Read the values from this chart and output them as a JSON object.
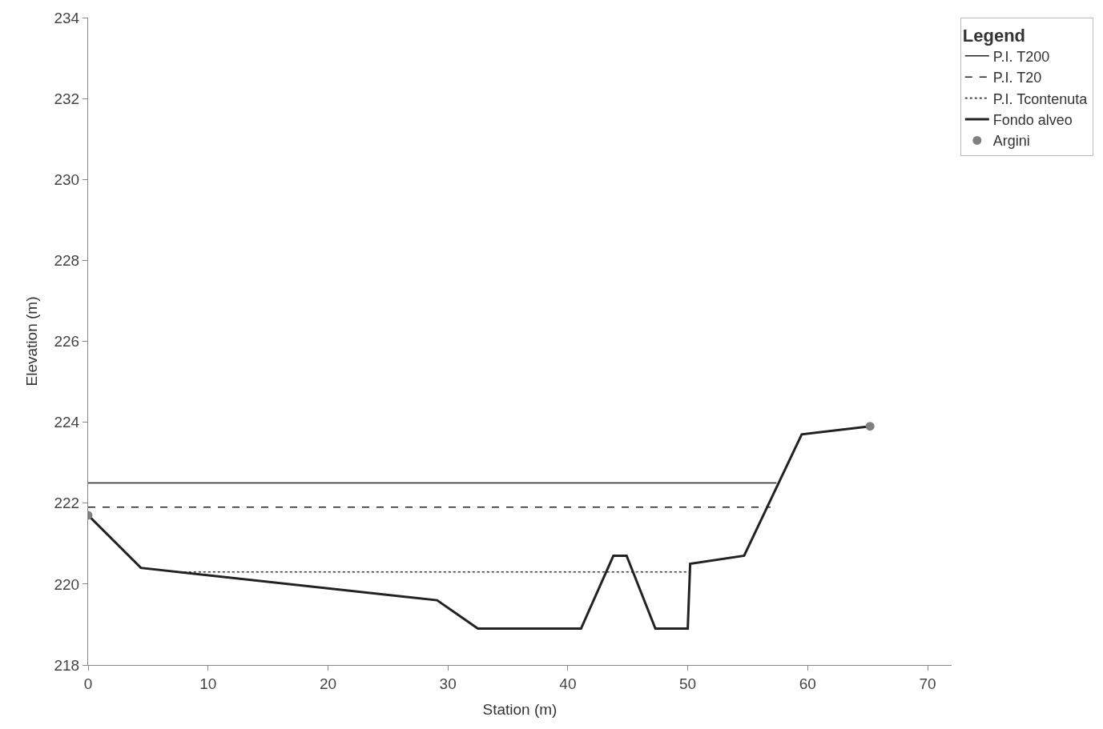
{
  "chart_data": {
    "type": "line",
    "xlabel": "Station (m)",
    "ylabel": "Elevation (m)",
    "legend_title": "Legend",
    "legend": "top right",
    "xlim": [
      0,
      72
    ],
    "xticks": [
      0,
      10,
      20,
      30,
      40,
      50,
      60,
      70
    ],
    "ylim": [
      218,
      234
    ],
    "yticks": [
      218,
      220,
      222,
      224,
      226,
      228,
      230,
      232,
      234
    ],
    "series": [
      {
        "name": "P.I. T200",
        "color": "#222222",
        "line_style": "solid",
        "marker": "none",
        "x": [
          0,
          57.4
        ],
        "values": [
          222.5,
          222.5
        ]
      },
      {
        "name": "P.I. T20",
        "color": "#222222",
        "line_style": "dashed",
        "marker": "none",
        "x": [
          0,
          56.9
        ],
        "values": [
          221.9,
          221.9
        ]
      },
      {
        "name": "P.I. Tcontenuta",
        "color": "#333333",
        "line_style": "dotted",
        "marker": "none",
        "x": [
          8.0,
          50.2
        ],
        "values": [
          220.3,
          220.3
        ]
      },
      {
        "name": "Fondo alveo",
        "color": "#222222",
        "line_style": "solid",
        "marker": "none",
        "x": [
          0,
          4.4,
          29.1,
          32.5,
          41.1,
          43.8,
          44.9,
          47.3,
          50.0,
          50.2,
          54.7,
          59.5,
          65.2
        ],
        "values": [
          221.7,
          220.4,
          219.6,
          218.9,
          218.9,
          220.7,
          220.7,
          218.9,
          218.9,
          220.5,
          220.7,
          223.7,
          223.9
        ]
      },
      {
        "name": "Argini",
        "type": "scatter",
        "color": "#808080",
        "marker": "circle",
        "x": [
          0,
          65.2
        ],
        "values": [
          221.7,
          223.9
        ]
      }
    ]
  }
}
